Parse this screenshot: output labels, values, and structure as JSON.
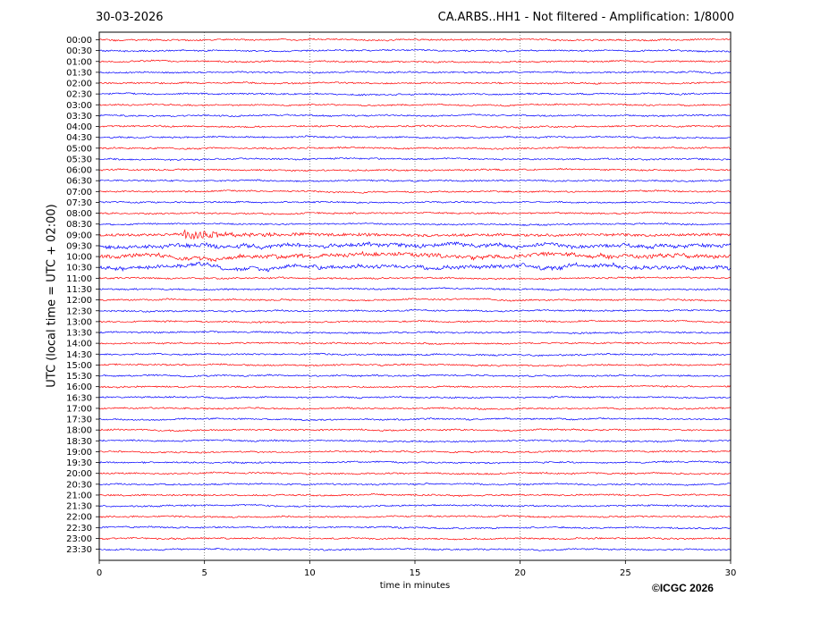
{
  "header": {
    "date": "30-03-2026",
    "title": "CA.ARBS..HH1 - Not filtered - Amplification: 1/8000"
  },
  "footer": {
    "copyright": "©ICGC 2026"
  },
  "colors": {
    "odd_trace": "#ff0000",
    "even_trace": "#0000ff",
    "axes": "#000000",
    "grid": "#444444"
  },
  "chart_data": {
    "type": "line",
    "title": "CA.ARBS..HH1 - Not filtered - Amplification: 1/8000",
    "xlabel": "time in minutes",
    "ylabel": "UTC (local time = UTC + 02:00)",
    "xlim": [
      0,
      30
    ],
    "x_ticks": [
      0,
      5,
      10,
      15,
      20,
      25,
      30
    ],
    "grid": "vertical dotted lines at x ticks",
    "trace_colors": [
      "red",
      "blue"
    ],
    "row_labels": [
      "00:00",
      "00:30",
      "01:00",
      "01:30",
      "02:00",
      "02:30",
      "03:00",
      "03:30",
      "04:00",
      "04:30",
      "05:00",
      "05:30",
      "06:00",
      "06:30",
      "07:00",
      "07:30",
      "08:00",
      "08:30",
      "09:00",
      "09:30",
      "10:00",
      "10:30",
      "11:00",
      "11:30",
      "12:00",
      "12:30",
      "13:00",
      "13:30",
      "14:00",
      "14:30",
      "15:00",
      "15:30",
      "16:00",
      "16:30",
      "17:00",
      "17:30",
      "18:00",
      "18:30",
      "19:00",
      "19:30",
      "20:00",
      "20:30",
      "21:00",
      "21:30",
      "22:00",
      "22:30",
      "23:00",
      "23:30"
    ],
    "row_activity": [
      {
        "row": "09:00",
        "event_start_min": 4.0,
        "event_peak_min": 4.3,
        "relative_amplitude": "high"
      },
      {
        "row": "09:30",
        "relative_amplitude": "medium"
      },
      {
        "row": "10:00",
        "relative_amplitude": "medium"
      },
      {
        "row": "10:30",
        "relative_amplitude": "medium"
      }
    ]
  }
}
